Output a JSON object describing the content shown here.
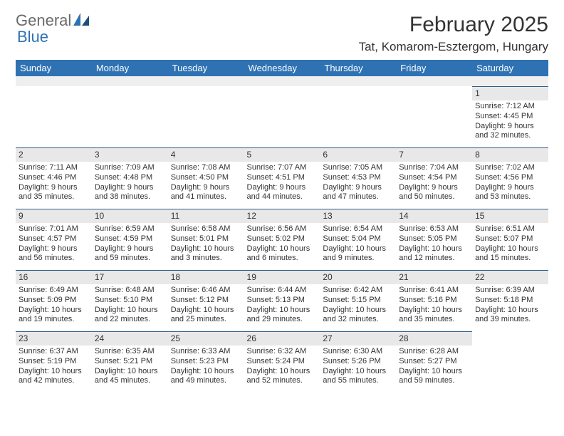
{
  "brand": {
    "gray": "General",
    "blue": "Blue"
  },
  "title": "February 2025",
  "location": "Tat, Komarom-Esztergom, Hungary",
  "colors": {
    "header_bg": "#2f72b4",
    "header_text": "#ffffff",
    "daynum_bg": "#e8e8e8",
    "row_divider": "#2f5d86",
    "logo_gray": "#6a6a6a",
    "logo_blue": "#2f72b4"
  },
  "typography": {
    "title_fontsize": 30,
    "location_fontsize": 17,
    "dayhead_fontsize": 13,
    "daynum_fontsize": 12,
    "body_fontsize": 11
  },
  "daynames": [
    "Sunday",
    "Monday",
    "Tuesday",
    "Wednesday",
    "Thursday",
    "Friday",
    "Saturday"
  ],
  "weeks": [
    [
      null,
      null,
      null,
      null,
      null,
      null,
      {
        "n": "1",
        "sr": "Sunrise: 7:12 AM",
        "ss": "Sunset: 4:45 PM",
        "d1": "Daylight: 9 hours",
        "d2": "and 32 minutes."
      }
    ],
    [
      {
        "n": "2",
        "sr": "Sunrise: 7:11 AM",
        "ss": "Sunset: 4:46 PM",
        "d1": "Daylight: 9 hours",
        "d2": "and 35 minutes."
      },
      {
        "n": "3",
        "sr": "Sunrise: 7:09 AM",
        "ss": "Sunset: 4:48 PM",
        "d1": "Daylight: 9 hours",
        "d2": "and 38 minutes."
      },
      {
        "n": "4",
        "sr": "Sunrise: 7:08 AM",
        "ss": "Sunset: 4:50 PM",
        "d1": "Daylight: 9 hours",
        "d2": "and 41 minutes."
      },
      {
        "n": "5",
        "sr": "Sunrise: 7:07 AM",
        "ss": "Sunset: 4:51 PM",
        "d1": "Daylight: 9 hours",
        "d2": "and 44 minutes."
      },
      {
        "n": "6",
        "sr": "Sunrise: 7:05 AM",
        "ss": "Sunset: 4:53 PM",
        "d1": "Daylight: 9 hours",
        "d2": "and 47 minutes."
      },
      {
        "n": "7",
        "sr": "Sunrise: 7:04 AM",
        "ss": "Sunset: 4:54 PM",
        "d1": "Daylight: 9 hours",
        "d2": "and 50 minutes."
      },
      {
        "n": "8",
        "sr": "Sunrise: 7:02 AM",
        "ss": "Sunset: 4:56 PM",
        "d1": "Daylight: 9 hours",
        "d2": "and 53 minutes."
      }
    ],
    [
      {
        "n": "9",
        "sr": "Sunrise: 7:01 AM",
        "ss": "Sunset: 4:57 PM",
        "d1": "Daylight: 9 hours",
        "d2": "and 56 minutes."
      },
      {
        "n": "10",
        "sr": "Sunrise: 6:59 AM",
        "ss": "Sunset: 4:59 PM",
        "d1": "Daylight: 9 hours",
        "d2": "and 59 minutes."
      },
      {
        "n": "11",
        "sr": "Sunrise: 6:58 AM",
        "ss": "Sunset: 5:01 PM",
        "d1": "Daylight: 10 hours",
        "d2": "and 3 minutes."
      },
      {
        "n": "12",
        "sr": "Sunrise: 6:56 AM",
        "ss": "Sunset: 5:02 PM",
        "d1": "Daylight: 10 hours",
        "d2": "and 6 minutes."
      },
      {
        "n": "13",
        "sr": "Sunrise: 6:54 AM",
        "ss": "Sunset: 5:04 PM",
        "d1": "Daylight: 10 hours",
        "d2": "and 9 minutes."
      },
      {
        "n": "14",
        "sr": "Sunrise: 6:53 AM",
        "ss": "Sunset: 5:05 PM",
        "d1": "Daylight: 10 hours",
        "d2": "and 12 minutes."
      },
      {
        "n": "15",
        "sr": "Sunrise: 6:51 AM",
        "ss": "Sunset: 5:07 PM",
        "d1": "Daylight: 10 hours",
        "d2": "and 15 minutes."
      }
    ],
    [
      {
        "n": "16",
        "sr": "Sunrise: 6:49 AM",
        "ss": "Sunset: 5:09 PM",
        "d1": "Daylight: 10 hours",
        "d2": "and 19 minutes."
      },
      {
        "n": "17",
        "sr": "Sunrise: 6:48 AM",
        "ss": "Sunset: 5:10 PM",
        "d1": "Daylight: 10 hours",
        "d2": "and 22 minutes."
      },
      {
        "n": "18",
        "sr": "Sunrise: 6:46 AM",
        "ss": "Sunset: 5:12 PM",
        "d1": "Daylight: 10 hours",
        "d2": "and 25 minutes."
      },
      {
        "n": "19",
        "sr": "Sunrise: 6:44 AM",
        "ss": "Sunset: 5:13 PM",
        "d1": "Daylight: 10 hours",
        "d2": "and 29 minutes."
      },
      {
        "n": "20",
        "sr": "Sunrise: 6:42 AM",
        "ss": "Sunset: 5:15 PM",
        "d1": "Daylight: 10 hours",
        "d2": "and 32 minutes."
      },
      {
        "n": "21",
        "sr": "Sunrise: 6:41 AM",
        "ss": "Sunset: 5:16 PM",
        "d1": "Daylight: 10 hours",
        "d2": "and 35 minutes."
      },
      {
        "n": "22",
        "sr": "Sunrise: 6:39 AM",
        "ss": "Sunset: 5:18 PM",
        "d1": "Daylight: 10 hours",
        "d2": "and 39 minutes."
      }
    ],
    [
      {
        "n": "23",
        "sr": "Sunrise: 6:37 AM",
        "ss": "Sunset: 5:19 PM",
        "d1": "Daylight: 10 hours",
        "d2": "and 42 minutes."
      },
      {
        "n": "24",
        "sr": "Sunrise: 6:35 AM",
        "ss": "Sunset: 5:21 PM",
        "d1": "Daylight: 10 hours",
        "d2": "and 45 minutes."
      },
      {
        "n": "25",
        "sr": "Sunrise: 6:33 AM",
        "ss": "Sunset: 5:23 PM",
        "d1": "Daylight: 10 hours",
        "d2": "and 49 minutes."
      },
      {
        "n": "26",
        "sr": "Sunrise: 6:32 AM",
        "ss": "Sunset: 5:24 PM",
        "d1": "Daylight: 10 hours",
        "d2": "and 52 minutes."
      },
      {
        "n": "27",
        "sr": "Sunrise: 6:30 AM",
        "ss": "Sunset: 5:26 PM",
        "d1": "Daylight: 10 hours",
        "d2": "and 55 minutes."
      },
      {
        "n": "28",
        "sr": "Sunrise: 6:28 AM",
        "ss": "Sunset: 5:27 PM",
        "d1": "Daylight: 10 hours",
        "d2": "and 59 minutes."
      },
      null
    ]
  ]
}
